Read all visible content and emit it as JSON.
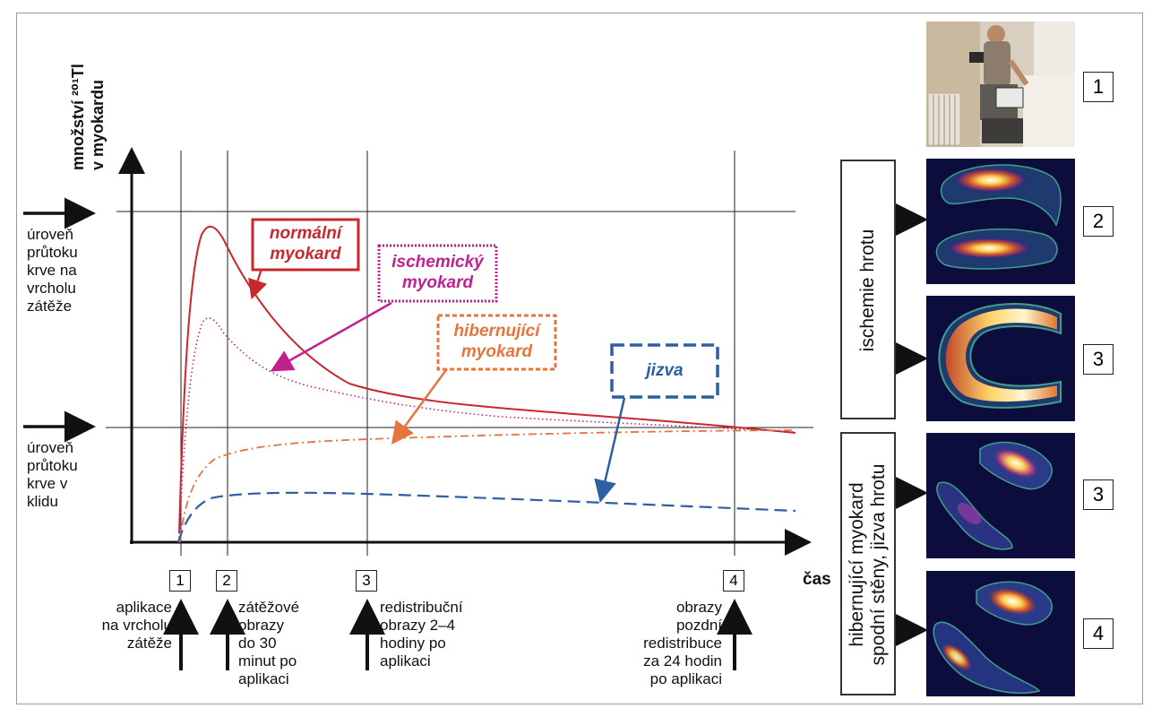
{
  "axes": {
    "y_label_line1": "množství ²⁰¹Tl",
    "y_label_line2": "v myokardu",
    "x_label": "čas"
  },
  "levels": {
    "peak_flow": [
      "úroveň",
      "průtoku",
      "krve na",
      "vrcholu",
      "zátěže"
    ],
    "rest_flow": [
      "úroveň",
      "průtoku",
      "krve v",
      "klidu"
    ]
  },
  "curve_labels": {
    "normal": [
      "normální",
      "myokard"
    ],
    "ischemic": [
      "ischemický",
      "myokard"
    ],
    "hibernating": [
      "hibernující",
      "myokard"
    ],
    "scar": "jizva"
  },
  "timepoints": [
    {
      "num": "1",
      "desc": [
        "aplikace",
        "na vrcholu",
        "zátěže"
      ]
    },
    {
      "num": "2",
      "desc": [
        "zátěžové",
        "obrazy",
        "do 30",
        "minut po",
        "aplikaci"
      ]
    },
    {
      "num": "3",
      "desc": [
        "redistribuční",
        "obrazy 2–4",
        "hodiny po",
        "aplikaci"
      ]
    },
    {
      "num": "4",
      "desc": [
        "obrazy",
        "pozdní",
        "redistribuce",
        "za 24 hodin",
        "po aplikaci"
      ]
    }
  ],
  "side_panels": {
    "box1": "ischemie hrotu",
    "box2_line1": "hibernující myokard",
    "box2_line2": "spodní stěny, jizva hrotu",
    "image_numbers": [
      "1",
      "2",
      "3",
      "3",
      "4"
    ]
  },
  "colors": {
    "normal": "#c8282d",
    "ischemic": "#c21f8f",
    "hibernating": "#e5753c",
    "scar": "#2c5fa3",
    "scan_bg": "#0c0d3c"
  }
}
